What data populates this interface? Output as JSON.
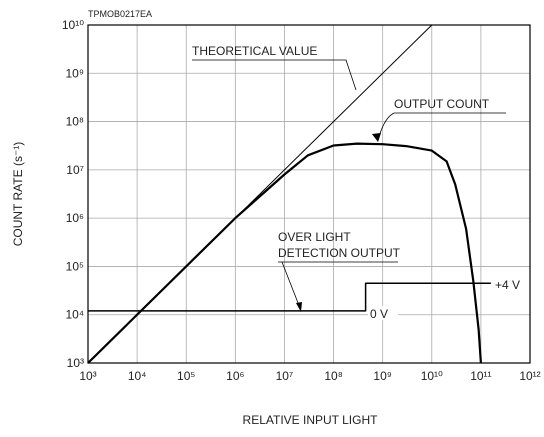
{
  "chart_data": {
    "type": "line",
    "code": "TPMOB0217EA",
    "xlabel": "RELATIVE INPUT LIGHT",
    "ylabel": "COUNT RATE (s⁻¹)",
    "xscale": "log",
    "yscale": "log",
    "grid": true,
    "xlim": [
      1000,
      1000000000000
    ],
    "ylim": [
      1000,
      10000000000
    ],
    "xticks": [
      {
        "value": 1000,
        "label": "10³"
      },
      {
        "value": 10000,
        "label": "10⁴"
      },
      {
        "value": 100000,
        "label": "10⁵"
      },
      {
        "value": 1000000,
        "label": "10⁶"
      },
      {
        "value": 10000000,
        "label": "10⁷"
      },
      {
        "value": 100000000,
        "label": "10⁸"
      },
      {
        "value": 1000000000,
        "label": "10⁹"
      },
      {
        "value": 10000000000,
        "label": "10¹⁰"
      },
      {
        "value": 100000000000,
        "label": "10¹¹"
      },
      {
        "value": 1000000000000,
        "label": "10¹²"
      }
    ],
    "yticks": [
      {
        "value": 1000,
        "label": "10³"
      },
      {
        "value": 10000,
        "label": "10⁴"
      },
      {
        "value": 100000,
        "label": "10⁵"
      },
      {
        "value": 1000000,
        "label": "10⁶"
      },
      {
        "value": 10000000,
        "label": "10⁷"
      },
      {
        "value": 100000000,
        "label": "10⁸"
      },
      {
        "value": 1000000000,
        "label": "10⁹"
      },
      {
        "value": 10000000000,
        "label": "10¹⁰"
      }
    ],
    "series": [
      {
        "name": "THEORETICAL VALUE",
        "color": "#000000",
        "width": 1,
        "x": [
          1000,
          10000000000
        ],
        "values": [
          1000,
          10000000000
        ]
      },
      {
        "name": "OUTPUT COUNT",
        "color": "#000000",
        "width": 2.2,
        "x": [
          1000,
          1000000,
          10000000,
          30000000,
          100000000,
          300000000,
          1000000000,
          3000000000,
          10000000000,
          20000000000,
          30000000000,
          50000000000,
          70000000000,
          90000000000,
          100000000000
        ],
        "values": [
          1000,
          1000000,
          8000000,
          20000000,
          32000000,
          35000000,
          34000000,
          31000000,
          25000000,
          15000000,
          5000000,
          600000,
          50000,
          5000,
          1000
        ]
      },
      {
        "label_lines": [
          "OVER LIGHT",
          "DETECTION OUTPUT"
        ],
        "color": "#000000",
        "width": 1.5,
        "x": [
          1000,
          450000000,
          450000000,
          160000000000
        ],
        "values": [
          12000,
          12000,
          45000,
          45000
        ]
      }
    ],
    "annotations": {
      "high": "+4 V",
      "low": "0 V"
    }
  }
}
